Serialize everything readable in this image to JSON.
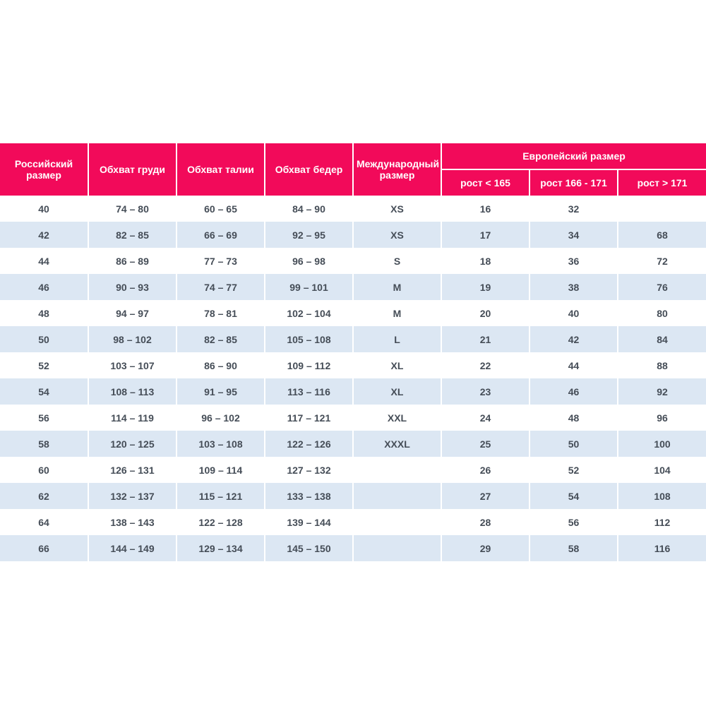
{
  "table": {
    "headers": {
      "russian_size": "Российский размер",
      "chest": "Обхват груди",
      "waist": "Обхват талии",
      "hips": "Обхват бедер",
      "international_size": "Международный размер",
      "european_size": "Европейский размер",
      "height_lt_165": "рост < 165",
      "height_166_171": "рост 166 - 171",
      "height_gt_171": "рост > 171"
    },
    "rows": [
      [
        "40",
        "74 – 80",
        "60 – 65",
        "84 – 90",
        "XS",
        "16",
        "32",
        ""
      ],
      [
        "42",
        "82 – 85",
        "66 – 69",
        "92 – 95",
        "XS",
        "17",
        "34",
        "68"
      ],
      [
        "44",
        "86 – 89",
        "77 – 73",
        "96 – 98",
        "S",
        "18",
        "36",
        "72"
      ],
      [
        "46",
        "90 – 93",
        "74 – 77",
        "99 – 101",
        "M",
        "19",
        "38",
        "76"
      ],
      [
        "48",
        "94 – 97",
        "78 – 81",
        "102 – 104",
        "M",
        "20",
        "40",
        "80"
      ],
      [
        "50",
        "98 – 102",
        "82 – 85",
        "105 – 108",
        "L",
        "21",
        "42",
        "84"
      ],
      [
        "52",
        "103 – 107",
        "86 – 90",
        "109 – 112",
        "XL",
        "22",
        "44",
        "88"
      ],
      [
        "54",
        "108 – 113",
        "91 – 95",
        "113 – 116",
        "XL",
        "23",
        "46",
        "92"
      ],
      [
        "56",
        "114 – 119",
        "96 – 102",
        "117 – 121",
        "XXL",
        "24",
        "48",
        "96"
      ],
      [
        "58",
        "120 – 125",
        "103 – 108",
        "122 – 126",
        "XXXL",
        "25",
        "50",
        "100"
      ],
      [
        "60",
        "126 – 131",
        "109 – 114",
        "127 – 132",
        "",
        "26",
        "52",
        "104"
      ],
      [
        "62",
        "132 – 137",
        "115 – 121",
        "133 – 138",
        "",
        "27",
        "54",
        "108"
      ],
      [
        "64",
        "138 – 143",
        "122 – 128",
        "139 – 144",
        "",
        "28",
        "56",
        "112"
      ],
      [
        "66",
        "144 – 149",
        "129 – 134",
        "145 – 150",
        "",
        "29",
        "58",
        "116"
      ]
    ],
    "colors": {
      "header_bg": "#F20A5A",
      "header_text": "#FFFFFF",
      "row_bg": "#FFFFFF",
      "row_alt_bg": "#DCE7F3",
      "cell_text": "#454D57"
    }
  }
}
